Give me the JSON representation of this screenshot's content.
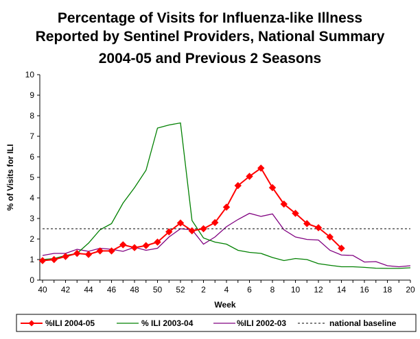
{
  "chart_data": {
    "type": "line",
    "title": "Percentage of Visits for Influenza-like Illness Reported by Sentinel Providers, National Summary 2004-05 and Previous 2 Seasons",
    "title_lines": [
      "Percentage of Visits for Influenza-like Illness",
      "Reported by Sentinel Providers, National Summary",
      "2004-05 and Previous 2 Seasons"
    ],
    "xlabel": "Week",
    "ylabel": "% of Visits for ILI",
    "ylim": [
      0,
      10
    ],
    "yticks": [
      0,
      1,
      2,
      3,
      4,
      5,
      6,
      7,
      8,
      9,
      10
    ],
    "weeks": [
      40,
      41,
      42,
      43,
      44,
      45,
      46,
      47,
      48,
      49,
      50,
      51,
      52,
      1,
      2,
      3,
      4,
      5,
      6,
      7,
      8,
      9,
      10,
      11,
      12,
      13,
      14,
      15,
      16,
      17,
      18,
      19,
      20
    ],
    "xtick_labels": [
      "40",
      "42",
      "44",
      "46",
      "48",
      "50",
      "52",
      "2",
      "4",
      "6",
      "8",
      "10",
      "12",
      "14",
      "16",
      "18",
      "20"
    ],
    "grid": false,
    "legend_position": "bottom",
    "series": [
      {
        "name": "%ILI 2004-05",
        "color": "#ff0000",
        "marker": "diamond",
        "values": [
          0.95,
          1.0,
          1.15,
          1.3,
          1.25,
          1.42,
          1.42,
          1.72,
          1.58,
          1.68,
          1.85,
          2.35,
          2.78,
          2.4,
          2.5,
          2.8,
          3.55,
          4.6,
          5.05,
          5.45,
          4.5,
          3.7,
          3.25,
          2.75,
          2.55,
          2.1,
          1.55
        ]
      },
      {
        "name": "% ILI 2003-04",
        "color": "#008000",
        "marker": "none",
        "values": [
          1.0,
          1.05,
          1.2,
          1.3,
          1.8,
          2.45,
          2.75,
          3.75,
          4.5,
          5.35,
          7.4,
          7.55,
          7.65,
          2.9,
          2.05,
          1.85,
          1.75,
          1.45,
          1.35,
          1.3,
          1.1,
          0.95,
          1.05,
          1.0,
          0.8,
          0.72,
          0.65,
          0.65,
          0.62,
          0.58,
          0.57,
          0.57,
          0.6
        ]
      },
      {
        "name": "%ILI 2002-03",
        "color": "#800080",
        "marker": "none",
        "values": [
          1.2,
          1.3,
          1.3,
          1.5,
          1.4,
          1.55,
          1.5,
          1.4,
          1.6,
          1.45,
          1.55,
          2.1,
          2.5,
          2.45,
          1.75,
          2.1,
          2.6,
          2.95,
          3.25,
          3.1,
          3.22,
          2.45,
          2.1,
          1.98,
          1.95,
          1.45,
          1.22,
          1.2,
          0.88,
          0.9,
          0.7,
          0.65,
          0.7
        ]
      },
      {
        "name": "national baseline",
        "color": "#000000",
        "marker": "none",
        "dashed": true,
        "constant": 2.5
      }
    ]
  }
}
